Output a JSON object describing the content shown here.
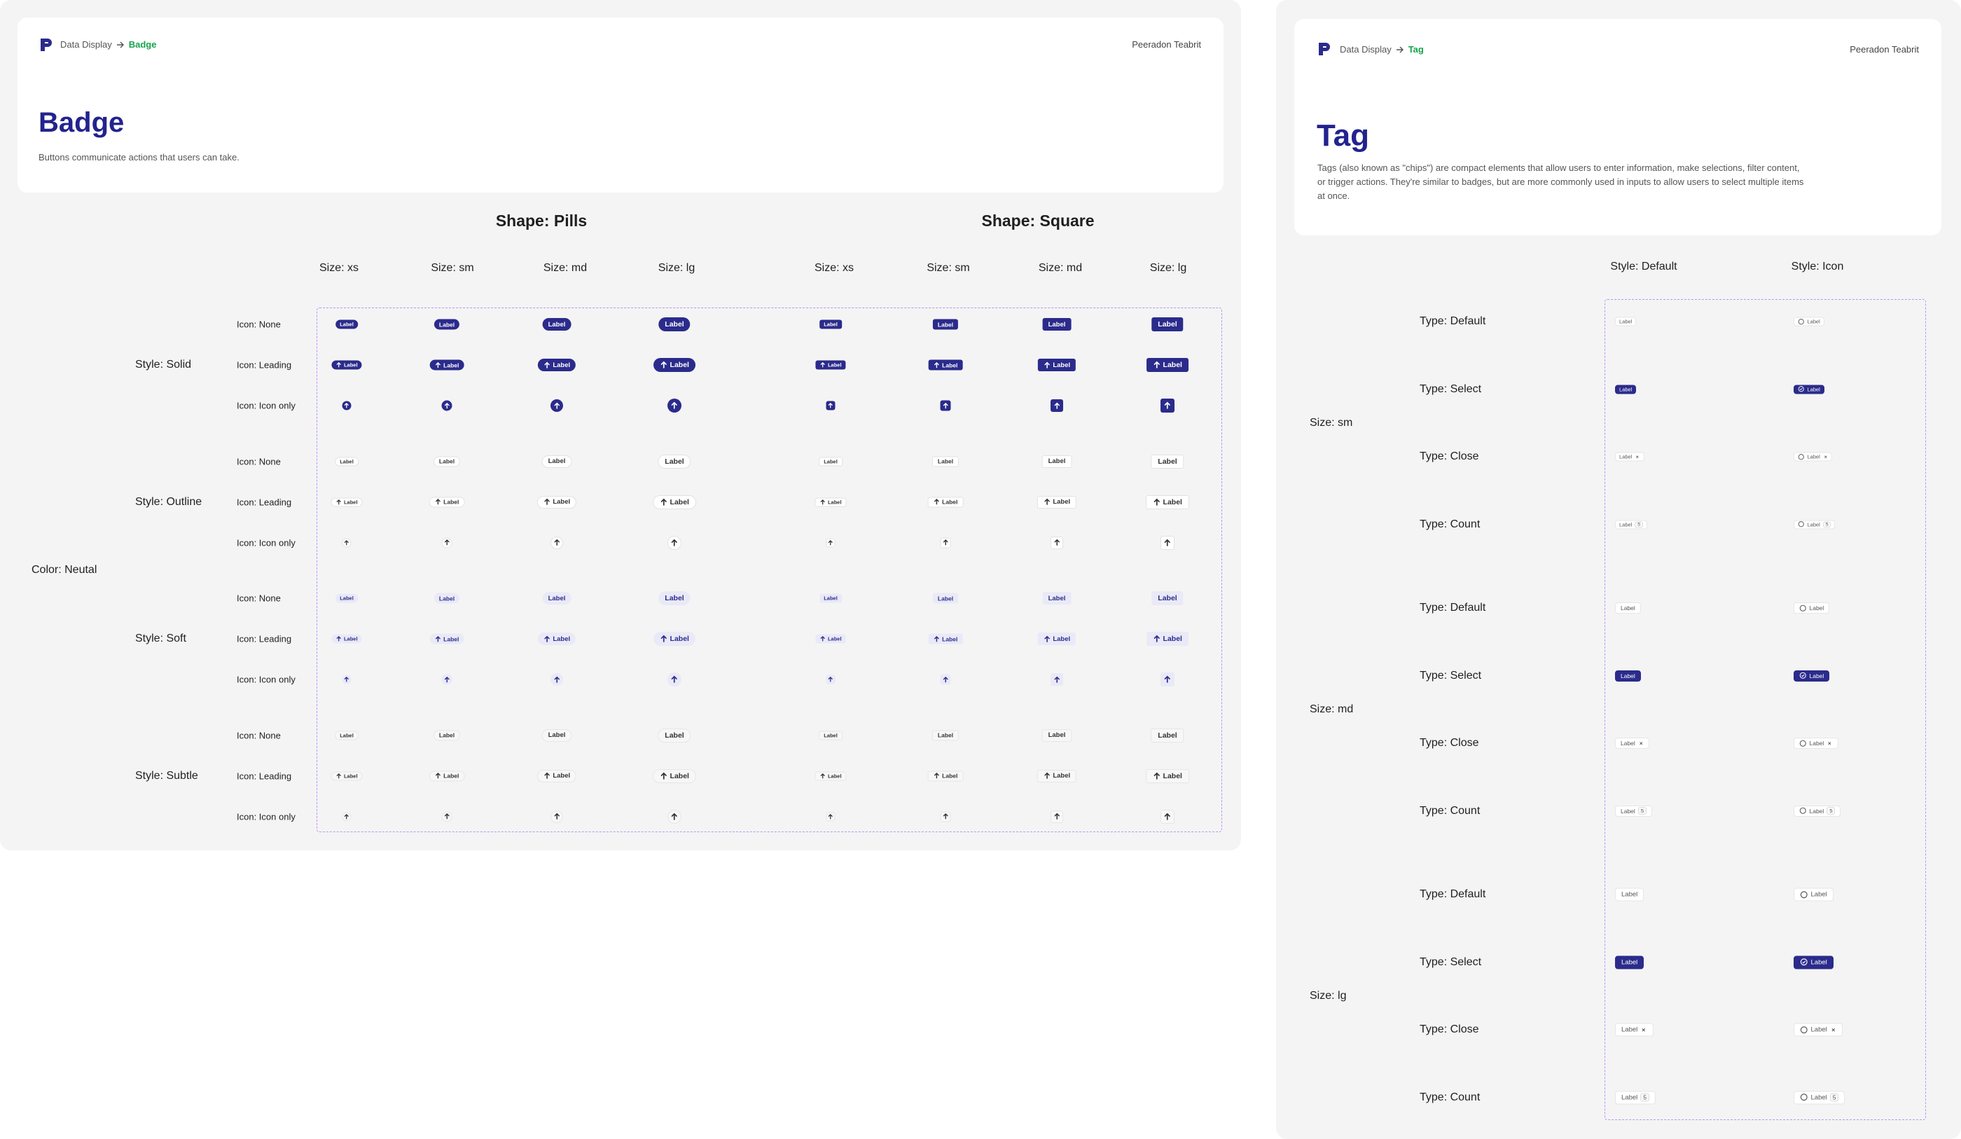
{
  "badge": {
    "breadcrumb": {
      "section": "Data Display",
      "page": "Badge"
    },
    "author": "Peeradon Teabrit",
    "title": "Badge",
    "description": "Buttons communicate actions that users can take.",
    "shapes": [
      "Shape: Pills",
      "Shape: Square"
    ],
    "sizes": [
      "Size: xs",
      "Size: sm",
      "Size: md",
      "Size: lg"
    ],
    "color": "Color: Neutal",
    "styles": [
      "Style: Solid",
      "Style: Outline",
      "Style: Soft",
      "Style: Subtle"
    ],
    "icons": [
      "Icon: None",
      "Icon: Leading",
      "Icon: Icon only"
    ],
    "label": "Label"
  },
  "tag": {
    "breadcrumb": {
      "section": "Data Display",
      "page": "Tag"
    },
    "author": "Peeradon Teabrit",
    "title": "Tag",
    "description": "Tags (also known as \"chips\") are compact elements that allow users to enter information, make selections, filter content, or trigger actions. They're similar to badges, but are more commonly used in inputs to allow users to select multiple items at once.",
    "styles": [
      "Style: Default",
      "Style: Icon"
    ],
    "sizes": [
      "Size: sm",
      "Size: md",
      "Size: lg"
    ],
    "types": [
      "Type: Default",
      "Type: Select",
      "Type: Close",
      "Type: Count"
    ],
    "label": "Label",
    "count": 5
  }
}
